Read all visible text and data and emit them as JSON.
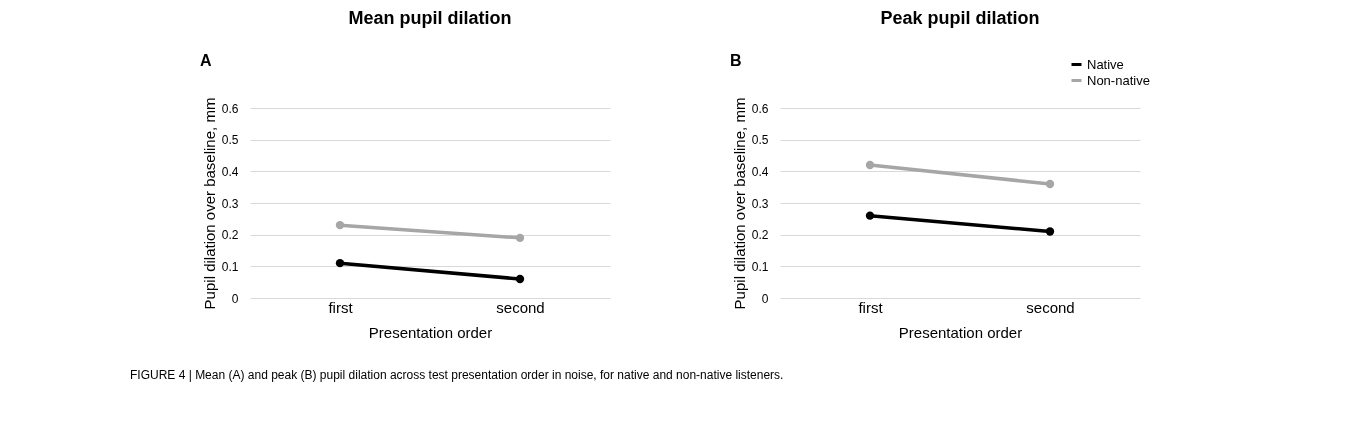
{
  "chart_data": [
    {
      "type": "line",
      "title": "Mean pupil dilation",
      "xlabel": "Presentation order",
      "ylabel": "Pupil dilation over baseline, mm",
      "categories": [
        "first",
        "second"
      ],
      "series": [
        {
          "color": "#000000",
          "values": [
            0.11,
            0.06
          ]
        },
        {
          "color": "#a6a6a6",
          "values": [
            0.23,
            0.19
          ]
        }
      ],
      "ylim": [
        0,
        0.6
      ],
      "yticks": [
        0,
        0.1,
        0.2,
        0.3,
        0.4,
        0.5,
        0.6
      ],
      "grid": "y",
      "marker": "circle",
      "legend": false,
      "annotations": [
        "A",
        "FIGURE 4 | Mean (A) and peak (B) pupil dilation across test presentation order in noise, for native and non-native listeners."
      ]
    },
    {
      "type": "line",
      "title": "Peak pupil dilation",
      "xlabel": "Presentation order",
      "ylabel": "Pupil dilation over baseline, mm",
      "categories": [
        "first",
        "second"
      ],
      "series": [
        {
          "name": "Native",
          "color": "#000000",
          "values": [
            0.26,
            0.21
          ]
        },
        {
          "name": "Non-native",
          "color": "#a6a6a6",
          "values": [
            0.42,
            0.36
          ]
        }
      ],
      "ylim": [
        0,
        0.6
      ],
      "yticks": [
        0,
        0.1,
        0.2,
        0.3,
        0.4,
        0.5,
        0.6
      ],
      "grid": "y",
      "marker": "circle",
      "legend": "top right",
      "annotations": [
        "B"
      ]
    }
  ]
}
